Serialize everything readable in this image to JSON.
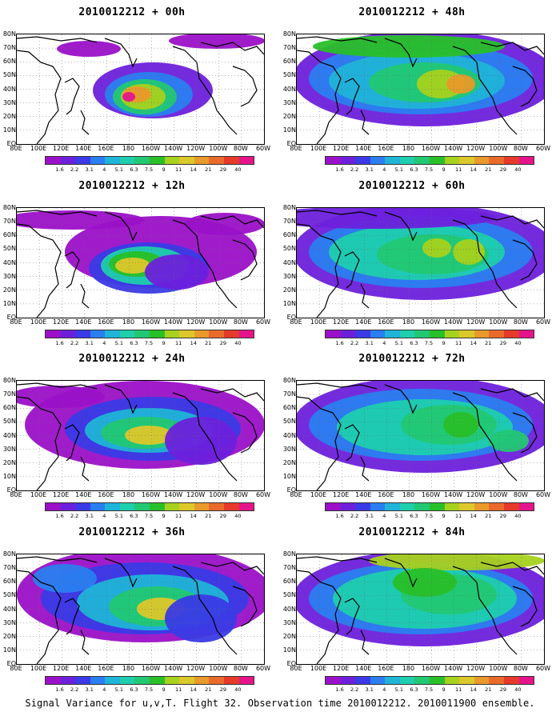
{
  "caption": "Signal Variance for u,v,T. Flight 32. Observation time 2010012212. 2010011900 ensemble.",
  "x_ticks": [
    "80E",
    "100E",
    "120E",
    "140E",
    "160E",
    "180",
    "160W",
    "140W",
    "120W",
    "100W",
    "80W",
    "60W"
  ],
  "y_ticks": [
    "80N",
    "70N",
    "60N",
    "50N",
    "40N",
    "30N",
    "20N",
    "10N",
    "EQ"
  ],
  "colorbar": {
    "levels": [
      "1.6",
      "2.2",
      "3.1",
      "4",
      "5.1",
      "6.3",
      "7.5",
      "9",
      "11",
      "14",
      "21",
      "29",
      "40"
    ],
    "colors": [
      "#9b10c8",
      "#6d20dc",
      "#3a3ae6",
      "#2a7ef0",
      "#1fb4d8",
      "#1ecfae",
      "#22c873",
      "#28c028",
      "#a6d21e",
      "#dcc82a",
      "#e89a2a",
      "#ea6a2c",
      "#e63a2a",
      "#e6148c"
    ]
  },
  "panels": [
    {
      "title": "2010012212 + 00h"
    },
    {
      "title": "2010012212 + 12h"
    },
    {
      "title": "2010012212 + 24h"
    },
    {
      "title": "2010012212 + 36h"
    },
    {
      "title": "2010012212 + 48h"
    },
    {
      "title": "2010012212 + 60h"
    },
    {
      "title": "2010012212 + 72h"
    },
    {
      "title": "2010012212 + 84h"
    }
  ]
}
